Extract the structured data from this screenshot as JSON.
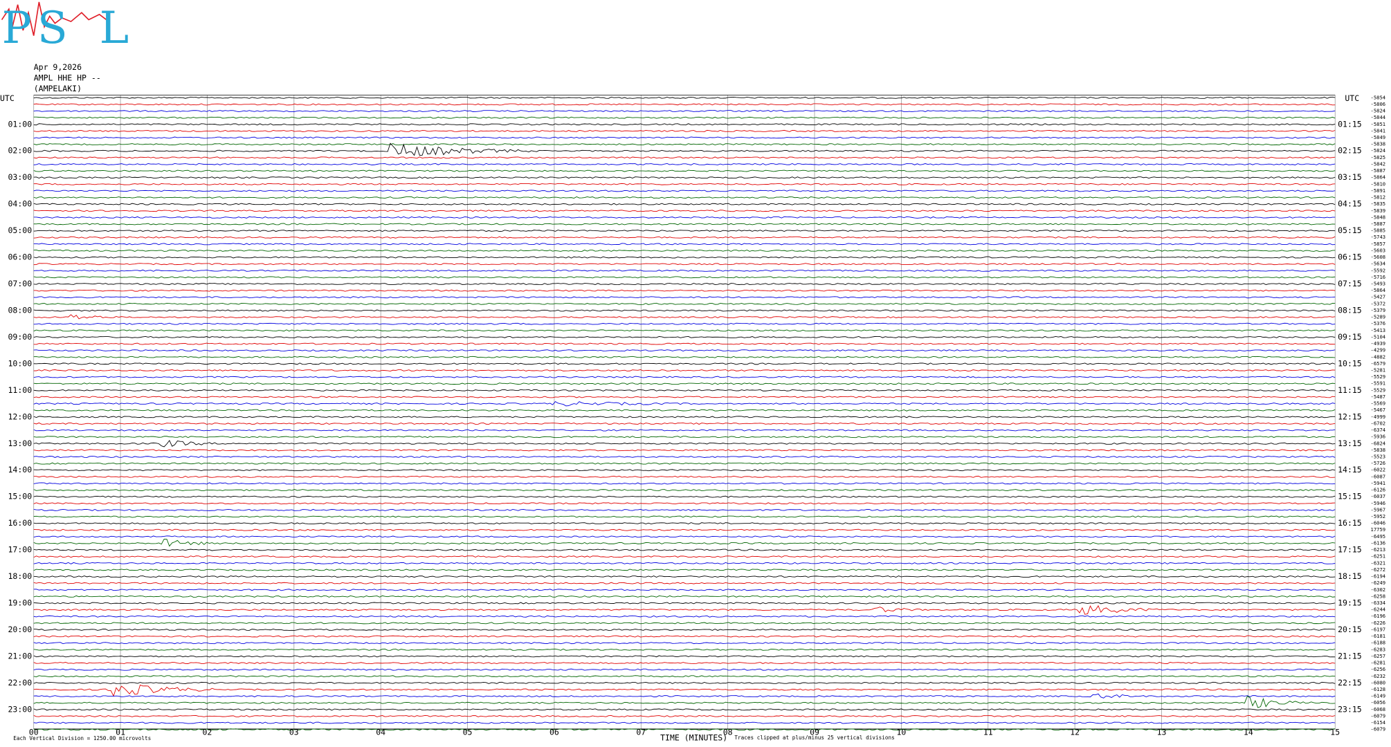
{
  "logo": {
    "letters": [
      "P",
      "S",
      "L"
    ]
  },
  "header": {
    "date": "Apr 9,2026",
    "station": "AMPL HHE HP --",
    "location": "(AMPELAKI)"
  },
  "left_labels": {
    "title": "UTC",
    "hours": [
      "01:00",
      "02:00",
      "03:00",
      "04:00",
      "05:00",
      "06:00",
      "07:00",
      "08:00",
      "09:00",
      "10:00",
      "11:00",
      "12:00",
      "13:00",
      "14:00",
      "15:00",
      "16:00",
      "17:00",
      "18:00",
      "19:00",
      "20:00",
      "21:00",
      "22:00",
      "23:00"
    ]
  },
  "right_labels": {
    "title": "UTC",
    "hours": [
      "01:15",
      "02:15",
      "03:15",
      "04:15",
      "05:15",
      "06:15",
      "07:15",
      "08:15",
      "09:15",
      "10:15",
      "11:15",
      "12:15",
      "13:15",
      "14:15",
      "15:15",
      "16:15",
      "17:15",
      "18:15",
      "19:15",
      "20:15",
      "21:15",
      "22:15",
      "23:15"
    ]
  },
  "trace_offsets": [
    -5854,
    -5806,
    -5824,
    -5844,
    -5851,
    -5841,
    -5849,
    -5838,
    -5824,
    -5825,
    -5842,
    -5887,
    -5864,
    -5810,
    -5891,
    -5812,
    -5835,
    -5839,
    -5848,
    -5887,
    -5885,
    -5743,
    -5857,
    -5603,
    -5608,
    -5634,
    -5592,
    -5716,
    -5493,
    -5864,
    -5427,
    -5372,
    -5379,
    -5289,
    -5376,
    -5413,
    -5104,
    -4939,
    -4299,
    -4882,
    -6579,
    -5281,
    -5529,
    -5591,
    -5529,
    -5487,
    -5569,
    -5467,
    -4999,
    -6702,
    -6374,
    -5936,
    -6824,
    -5838,
    -5523,
    -5726,
    -6022,
    -6087,
    -5941,
    -6126,
    -6037,
    -5946,
    -5967,
    -5952,
    -6046,
    17759,
    -6495,
    -6136,
    -6213,
    -6251,
    -6321,
    -6272,
    -6194,
    -6249,
    -6302,
    -6258,
    -6334,
    -6244,
    -6196,
    -6226,
    -6197,
    -6181,
    -6188,
    -6283,
    -6257,
    -6281,
    -6256,
    -6232,
    -6080,
    -6128,
    -6149,
    -6056,
    -6068,
    -6079,
    -6154,
    -6079
  ],
  "x_axis": {
    "labels": [
      "00",
      "01",
      "02",
      "03",
      "04",
      "05",
      "06",
      "07",
      "08",
      "09",
      "10",
      "11",
      "12",
      "13",
      "14",
      "15"
    ],
    "title": "TIME (MINUTES)"
  },
  "footer": {
    "division": "Each Vertical Division = 1250.00 microvolts",
    "clipping": "Traces clipped at plus/minus 25 vertical divisions"
  }
}
